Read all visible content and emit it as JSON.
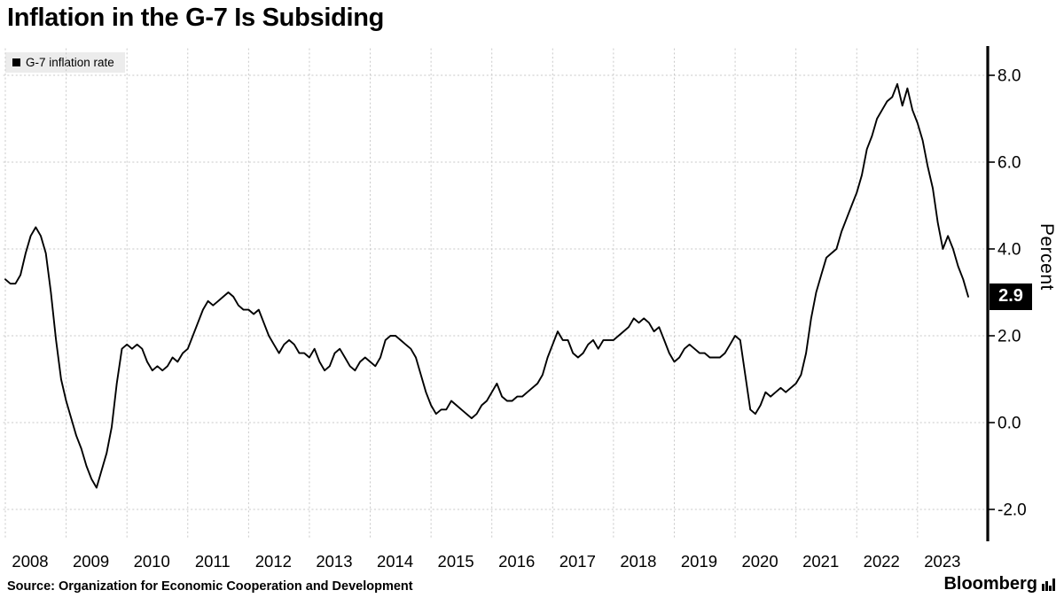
{
  "header": {
    "title": "Inflation in the G-7 Is Subsiding"
  },
  "legend": {
    "label": "G-7 inflation rate",
    "marker_color": "#000000"
  },
  "chart_data": {
    "type": "line",
    "title": "Inflation in the G-7 Is Subsiding",
    "ylabel": "Percent",
    "xlabel": "",
    "ylim": [
      -2.6,
      8.6
    ],
    "yticks": [
      8.0,
      6.0,
      4.0,
      2.0,
      0.0,
      -2.0
    ],
    "ytick_labels": [
      "8.0",
      "6.0",
      "4.0",
      "2.0",
      "0.0",
      "-2.0"
    ],
    "xtick_labels": [
      "2008",
      "2009",
      "2010",
      "2011",
      "2012",
      "2013",
      "2014",
      "2015",
      "2016",
      "2017",
      "2018",
      "2019",
      "2020",
      "2021",
      "2022",
      "2023"
    ],
    "grid": "dotted",
    "legend_position": "top-left",
    "axis_side": "right",
    "last_value_label": "2.9",
    "line_color": "#000000",
    "series": [
      {
        "name": "G-7 inflation rate",
        "frequency": "monthly",
        "start": "2008-01",
        "end": "2023-11",
        "values": [
          3.3,
          3.2,
          3.2,
          3.4,
          3.9,
          4.3,
          4.5,
          4.3,
          3.9,
          3.0,
          1.9,
          1.0,
          0.5,
          0.1,
          -0.3,
          -0.6,
          -1.0,
          -1.3,
          -1.5,
          -1.1,
          -0.7,
          -0.1,
          0.9,
          1.7,
          1.8,
          1.7,
          1.8,
          1.7,
          1.4,
          1.2,
          1.3,
          1.2,
          1.3,
          1.5,
          1.4,
          1.6,
          1.7,
          2.0,
          2.3,
          2.6,
          2.8,
          2.7,
          2.8,
          2.9,
          3.0,
          2.9,
          2.7,
          2.6,
          2.6,
          2.5,
          2.6,
          2.3,
          2.0,
          1.8,
          1.6,
          1.8,
          1.9,
          1.8,
          1.6,
          1.6,
          1.5,
          1.7,
          1.4,
          1.2,
          1.3,
          1.6,
          1.7,
          1.5,
          1.3,
          1.2,
          1.4,
          1.5,
          1.4,
          1.3,
          1.5,
          1.9,
          2.0,
          2.0,
          1.9,
          1.8,
          1.7,
          1.5,
          1.1,
          0.7,
          0.4,
          0.2,
          0.3,
          0.3,
          0.5,
          0.4,
          0.3,
          0.2,
          0.1,
          0.2,
          0.4,
          0.5,
          0.7,
          0.9,
          0.6,
          0.5,
          0.5,
          0.6,
          0.6,
          0.7,
          0.8,
          0.9,
          1.1,
          1.5,
          1.8,
          2.1,
          1.9,
          1.9,
          1.6,
          1.5,
          1.6,
          1.8,
          1.9,
          1.7,
          1.9,
          1.9,
          1.9,
          2.0,
          2.1,
          2.2,
          2.4,
          2.3,
          2.4,
          2.3,
          2.1,
          2.2,
          1.9,
          1.6,
          1.4,
          1.5,
          1.7,
          1.8,
          1.7,
          1.6,
          1.6,
          1.5,
          1.5,
          1.5,
          1.6,
          1.8,
          2.0,
          1.9,
          1.1,
          0.3,
          0.2,
          0.4,
          0.7,
          0.6,
          0.7,
          0.8,
          0.7,
          0.8,
          0.9,
          1.1,
          1.6,
          2.4,
          3.0,
          3.4,
          3.8,
          3.9,
          4.0,
          4.4,
          4.7,
          5.0,
          5.3,
          5.7,
          6.3,
          6.6,
          7.0,
          7.2,
          7.4,
          7.5,
          7.8,
          7.3,
          7.7,
          7.2,
          6.9,
          6.5,
          5.9,
          5.4,
          4.6,
          4.0,
          4.3,
          4.0,
          3.6,
          3.3,
          2.9
        ]
      }
    ]
  },
  "footer": {
    "source": "Source: Organization for Economic Cooperation and Development",
    "brand": "Bloomberg"
  }
}
